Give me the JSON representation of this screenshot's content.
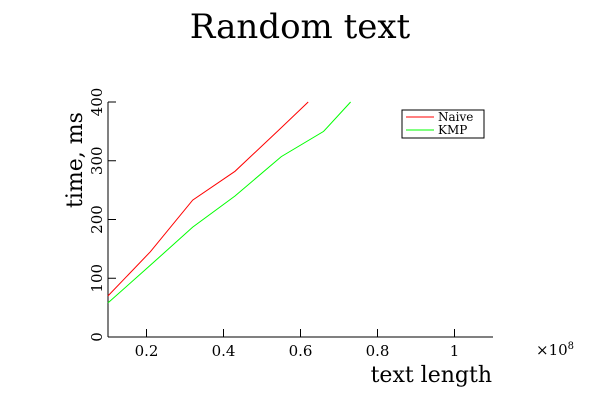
{
  "chart_data": {
    "type": "line",
    "title": "Random text",
    "xlabel": "text length",
    "ylabel": "time, ms",
    "x_multiplier_label": "×10",
    "x_multiplier_exponent": "8",
    "xlim": [
      0.1,
      1.1
    ],
    "ylim": [
      0,
      400
    ],
    "x_ticks": [
      0.2,
      0.4,
      0.6,
      0.8,
      1.0
    ],
    "x_tick_labels": [
      "0.2",
      "0.4",
      "0.6",
      "0.8",
      "1"
    ],
    "y_ticks": [
      0,
      100,
      200,
      300,
      400
    ],
    "y_tick_labels": [
      "0",
      "100",
      "200",
      "300",
      "400"
    ],
    "grid": false,
    "legend_position": "top-right",
    "series": [
      {
        "name": "Naive",
        "color": "#ff0000",
        "x": [
          0.1,
          0.21,
          0.32,
          0.43,
          0.54,
          0.62
        ],
        "y": [
          70,
          145,
          233,
          282,
          350,
          400
        ]
      },
      {
        "name": "KMP",
        "color": "#00ff00",
        "x": [
          0.1,
          0.21,
          0.32,
          0.43,
          0.55,
          0.66,
          0.73
        ],
        "y": [
          58,
          122,
          187,
          240,
          307,
          350,
          400
        ]
      }
    ]
  }
}
